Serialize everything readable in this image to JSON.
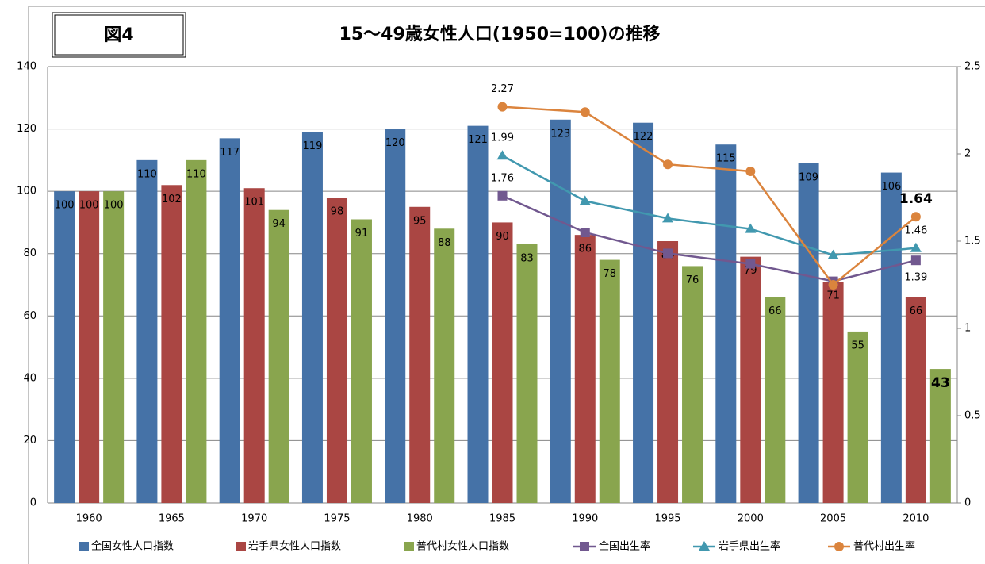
{
  "chart_data": {
    "type": "bar",
    "figure_label": "図4",
    "title": "15〜49歳女性人口(1950=100)の推移",
    "categories": [
      "1960",
      "1965",
      "1970",
      "1975",
      "1980",
      "1985",
      "1990",
      "1995",
      "2000",
      "2005",
      "2010"
    ],
    "ylim": [
      0,
      140
    ],
    "yticks": [
      0,
      20,
      40,
      60,
      80,
      100,
      120,
      140
    ],
    "y2lim": [
      0,
      2.5
    ],
    "y2ticks": [
      0,
      0.5,
      1,
      1.5,
      2,
      2.5
    ],
    "grid": true,
    "legend": "bottom",
    "series": [
      {
        "name": "全国女性人口指数",
        "type": "bar",
        "color": "#4572a7",
        "values": [
          100,
          110,
          117,
          119,
          120,
          121,
          123,
          122,
          115,
          109,
          106
        ]
      },
      {
        "name": "岩手県女性人口指数",
        "type": "bar",
        "color": "#aa4643",
        "values": [
          100,
          102,
          101,
          98,
          95,
          90,
          86,
          84,
          79,
          71,
          66
        ]
      },
      {
        "name": "普代村女性人口指数",
        "type": "bar",
        "color": "#89a54e",
        "values": [
          100,
          110,
          94,
          91,
          88,
          83,
          78,
          76,
          66,
          55,
          43
        ]
      },
      {
        "name": "全国出生率",
        "type": "line",
        "axis": "y2",
        "color": "#71588f",
        "marker": "square",
        "values": [
          null,
          null,
          null,
          null,
          null,
          1.76,
          1.55,
          1.43,
          1.37,
          1.27,
          1.39
        ],
        "value_labels": [
          null,
          null,
          null,
          null,
          null,
          "1.76",
          null,
          null,
          null,
          null,
          "1.39"
        ]
      },
      {
        "name": "岩手県出生率",
        "type": "line",
        "axis": "y2",
        "color": "#4198af",
        "marker": "triangle",
        "values": [
          null,
          null,
          null,
          null,
          null,
          1.99,
          1.73,
          1.63,
          1.57,
          1.42,
          1.46
        ],
        "value_labels": [
          null,
          null,
          null,
          null,
          null,
          "1.99",
          null,
          null,
          null,
          null,
          "1.46"
        ]
      },
      {
        "name": "普代村出生率",
        "type": "line",
        "axis": "y2",
        "color": "#db843d",
        "marker": "circle",
        "values": [
          null,
          null,
          null,
          null,
          null,
          2.27,
          2.24,
          1.94,
          1.9,
          1.25,
          1.64
        ],
        "value_labels": [
          null,
          null,
          null,
          null,
          null,
          "2.27",
          null,
          null,
          null,
          null,
          "1.64"
        ]
      }
    ]
  }
}
